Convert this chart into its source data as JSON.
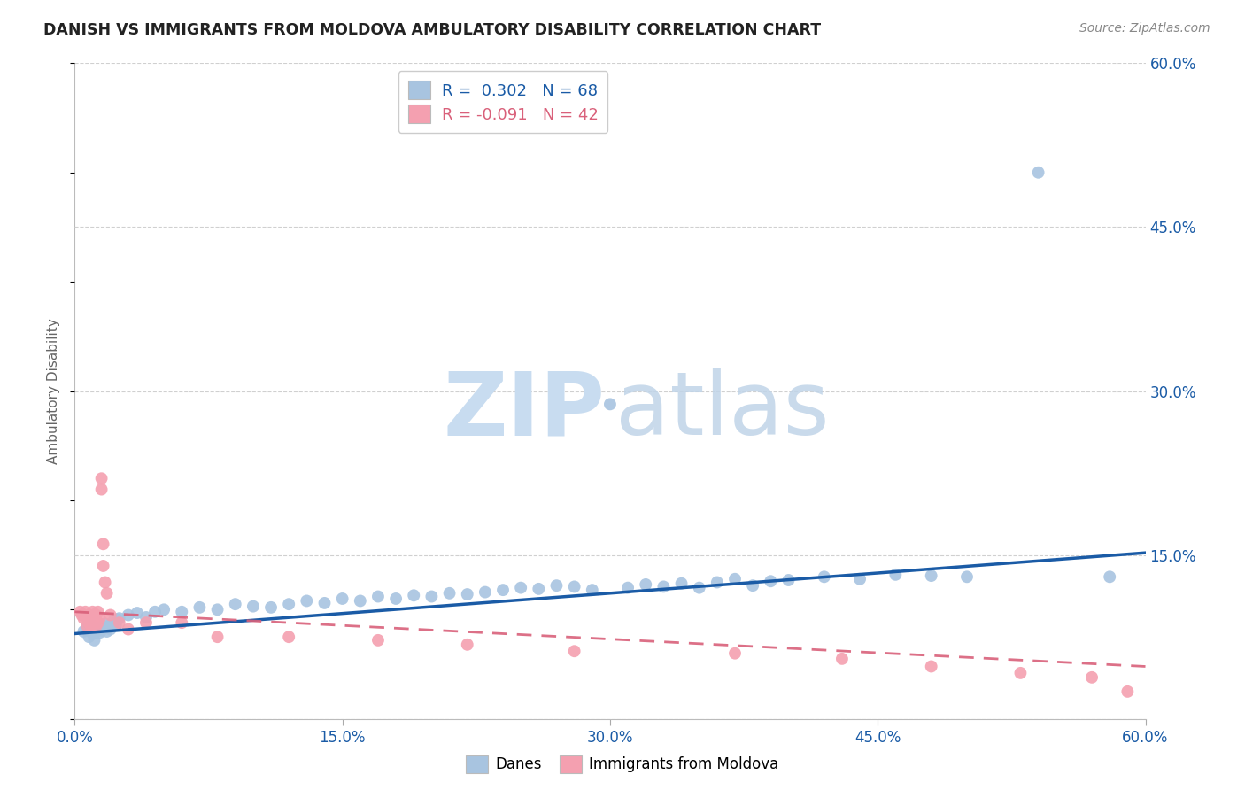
{
  "title": "DANISH VS IMMIGRANTS FROM MOLDOVA AMBULATORY DISABILITY CORRELATION CHART",
  "source": "Source: ZipAtlas.com",
  "ylabel": "Ambulatory Disability",
  "xlim": [
    0.0,
    0.6
  ],
  "ylim": [
    0.0,
    0.6
  ],
  "xticks": [
    0.0,
    0.15,
    0.3,
    0.45,
    0.6
  ],
  "xtick_labels": [
    "0.0%",
    "15.0%",
    "30.0%",
    "45.0%",
    "60.0%"
  ],
  "yticks_right": [
    0.0,
    0.15,
    0.3,
    0.45,
    0.6
  ],
  "ytick_labels_right": [
    "",
    "15.0%",
    "30.0%",
    "45.0%",
    "60.0%"
  ],
  "danes_R": 0.302,
  "danes_N": 68,
  "moldova_R": -0.091,
  "moldova_N": 42,
  "dane_color": "#A8C4E0",
  "moldova_color": "#F4A0B0",
  "dane_line_color": "#1A5BA6",
  "moldova_line_color": "#D9607A",
  "legend_dane_label": "Danes",
  "legend_moldova_label": "Immigrants from Moldova",
  "watermark_zip": "ZIP",
  "watermark_atlas": "atlas",
  "background_color": "#FFFFFF",
  "grid_color": "#D0D0D0",
  "danes_x": [
    0.005,
    0.007,
    0.008,
    0.009,
    0.01,
    0.01,
    0.011,
    0.012,
    0.013,
    0.014,
    0.015,
    0.016,
    0.017,
    0.018,
    0.019,
    0.02,
    0.021,
    0.022,
    0.023,
    0.024,
    0.025,
    0.03,
    0.035,
    0.04,
    0.045,
    0.05,
    0.06,
    0.07,
    0.08,
    0.09,
    0.1,
    0.11,
    0.12,
    0.13,
    0.14,
    0.15,
    0.16,
    0.17,
    0.18,
    0.19,
    0.2,
    0.21,
    0.22,
    0.23,
    0.24,
    0.25,
    0.26,
    0.27,
    0.28,
    0.29,
    0.3,
    0.31,
    0.32,
    0.33,
    0.34,
    0.35,
    0.36,
    0.37,
    0.38,
    0.39,
    0.4,
    0.42,
    0.44,
    0.46,
    0.48,
    0.5,
    0.54,
    0.58
  ],
  "danes_y": [
    0.08,
    0.085,
    0.075,
    0.082,
    0.078,
    0.085,
    0.072,
    0.08,
    0.083,
    0.079,
    0.081,
    0.083,
    0.087,
    0.08,
    0.085,
    0.082,
    0.085,
    0.09,
    0.086,
    0.091,
    0.092,
    0.095,
    0.097,
    0.093,
    0.098,
    0.1,
    0.098,
    0.102,
    0.1,
    0.105,
    0.103,
    0.102,
    0.105,
    0.108,
    0.106,
    0.11,
    0.108,
    0.112,
    0.11,
    0.113,
    0.112,
    0.115,
    0.114,
    0.116,
    0.118,
    0.12,
    0.119,
    0.122,
    0.121,
    0.118,
    0.288,
    0.12,
    0.123,
    0.121,
    0.124,
    0.12,
    0.125,
    0.128,
    0.122,
    0.126,
    0.127,
    0.13,
    0.128,
    0.132,
    0.131,
    0.13,
    0.5,
    0.13
  ],
  "moldova_x": [
    0.003,
    0.004,
    0.005,
    0.006,
    0.007,
    0.007,
    0.008,
    0.008,
    0.009,
    0.009,
    0.01,
    0.01,
    0.011,
    0.011,
    0.012,
    0.012,
    0.012,
    0.013,
    0.013,
    0.014,
    0.015,
    0.015,
    0.016,
    0.016,
    0.017,
    0.018,
    0.02,
    0.025,
    0.03,
    0.04,
    0.06,
    0.08,
    0.12,
    0.17,
    0.22,
    0.28,
    0.37,
    0.43,
    0.48,
    0.53,
    0.57,
    0.59
  ],
  "moldova_y": [
    0.098,
    0.095,
    0.092,
    0.098,
    0.085,
    0.092,
    0.088,
    0.095,
    0.09,
    0.085,
    0.098,
    0.092,
    0.088,
    0.095,
    0.085,
    0.09,
    0.095,
    0.088,
    0.098,
    0.092,
    0.21,
    0.22,
    0.16,
    0.14,
    0.125,
    0.115,
    0.095,
    0.088,
    0.082,
    0.088,
    0.088,
    0.075,
    0.075,
    0.072,
    0.068,
    0.062,
    0.06,
    0.055,
    0.048,
    0.042,
    0.038,
    0.025
  ],
  "dane_trend_x0": 0.0,
  "dane_trend_y0": 0.078,
  "dane_trend_x1": 0.6,
  "dane_trend_y1": 0.152,
  "moldova_trend_x0": 0.0,
  "moldova_trend_y0": 0.098,
  "moldova_trend_x1": 0.6,
  "moldova_trend_y1": 0.048
}
